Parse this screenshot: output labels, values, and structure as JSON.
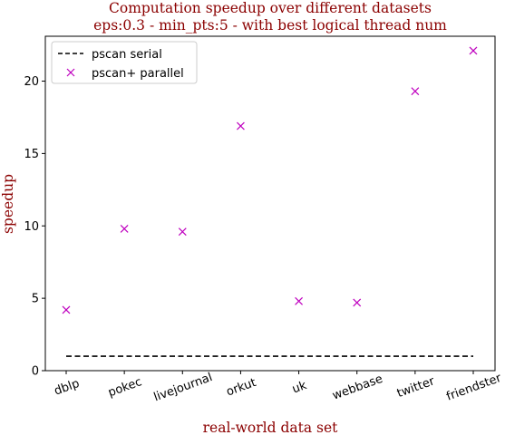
{
  "chart_data": {
    "type": "scatter",
    "title": "Computation speedup over different datasets",
    "subtitle": "eps:0.3 - min_pts:5 - with best logical thread num",
    "xlabel": "real-world data set",
    "ylabel": "speedup",
    "categories": [
      "dblp",
      "pokec",
      "livejournal",
      "orkut",
      "uk",
      "webbase",
      "twitter",
      "friendster"
    ],
    "ylim": [
      0,
      23.1
    ],
    "yticks": [
      0,
      5,
      10,
      15,
      20
    ],
    "legend_position": "upper-left",
    "series": [
      {
        "name": "pscan serial",
        "style": "dashed-line",
        "color": "#000000",
        "values": [
          1,
          1,
          1,
          1,
          1,
          1,
          1,
          1
        ]
      },
      {
        "name": "pscan+ parallel",
        "style": "x-marker",
        "color": "#bf00bf",
        "values": [
          4.2,
          9.8,
          9.6,
          16.9,
          4.8,
          4.7,
          19.3,
          22.1
        ]
      }
    ]
  }
}
